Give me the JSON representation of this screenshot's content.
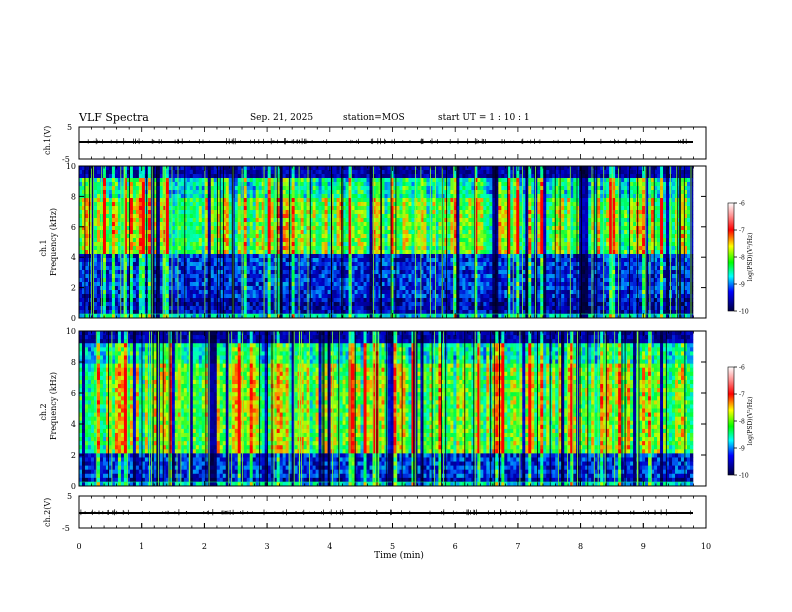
{
  "header": {
    "title": "VLF Spectra",
    "date": "Sep. 21, 2025",
    "station": "station=MOS",
    "start_ut": "start UT =  1 : 10 : 1"
  },
  "chart_data": [
    {
      "type": "line",
      "panel": "ch1-waveform",
      "ylabel": "ch.1(V)",
      "ylim": [
        -5,
        5
      ],
      "yticks": [
        "5",
        "-5"
      ],
      "xlim": [
        0,
        10
      ],
      "baseline": 0,
      "description_values": {
        "level": 0
      }
    },
    {
      "type": "heatmap",
      "panel": "ch1-spectrogram",
      "ylabel": "ch.1\nFrequency (kHz)",
      "ylabel_line1": "ch.1",
      "ylabel_line2": "Frequency (kHz)",
      "ylim": [
        0,
        10
      ],
      "yticks": [
        "0",
        "2",
        "4",
        "6",
        "8",
        "10"
      ],
      "xlim": [
        0,
        9.82
      ],
      "colorbar": {
        "label": "log(PSD)(V²/Hz)",
        "range": [
          -10,
          -6
        ],
        "ticks": [
          "-6",
          "-7",
          "-8",
          "-9",
          "-10"
        ]
      }
    },
    {
      "type": "heatmap",
      "panel": "ch2-spectrogram",
      "ylabel_line1": "ch.2",
      "ylabel_line2": "Frequency (kHz)",
      "ylim": [
        0,
        10
      ],
      "yticks": [
        "0",
        "2",
        "4",
        "6",
        "8",
        "10"
      ],
      "xlim": [
        0,
        9.82
      ],
      "colorbar": {
        "label": "log(PSD)(V²/Hz)",
        "range": [
          -10,
          -6
        ],
        "ticks": [
          "-6",
          "-7",
          "-8",
          "-9",
          "-10"
        ]
      }
    },
    {
      "type": "line",
      "panel": "ch2-waveform",
      "ylabel": "ch.2(V)",
      "ylim": [
        -5,
        5
      ],
      "yticks": [
        "5",
        "-5"
      ],
      "xlim": [
        0,
        10
      ],
      "xlabel": "Time (min)",
      "xticks": [
        "0",
        "1",
        "2",
        "3",
        "4",
        "5",
        "6",
        "7",
        "8",
        "9",
        "10"
      ]
    }
  ],
  "colors": {
    "spectrogram_low": "#000000",
    "spectrogram_mid": "#00ff66",
    "spectrogram_high": "#ff0000"
  }
}
